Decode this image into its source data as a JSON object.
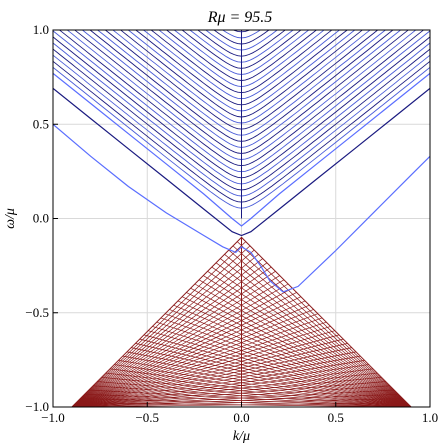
{
  "chart_data": {
    "type": "line",
    "title": "Rμ = 95.5",
    "xlabel": "k/μ",
    "ylabel": "ω/μ",
    "xlim": [
      -1.0,
      1.0
    ],
    "ylim": [
      -1.0,
      1.0
    ],
    "xticks": [
      -1.0,
      -0.5,
      0.0,
      0.5,
      1.0
    ],
    "xtick_labels": [
      "−1.0",
      "−0.5",
      "0.0",
      "0.5",
      "1.0"
    ],
    "yticks": [
      -1.0,
      -0.5,
      0.0,
      0.5,
      1.0
    ],
    "yticks_labels": [
      "−1.0",
      "−0.5",
      "0.0",
      "0.5",
      "1.0"
    ],
    "grid": true,
    "colors": {
      "dark_blue": "#1a1a80",
      "light_blue": "#5a6eff",
      "red": "#8b1a1a",
      "grid": "#d9d9d9"
    },
    "series": [
      {
        "color": "light_blue",
        "points": [
          [
            -1.0,
            0.5
          ],
          [
            -0.8,
            0.33
          ],
          [
            -0.6,
            0.17
          ],
          [
            -0.4,
            0.03
          ],
          [
            -0.2,
            -0.09
          ],
          [
            -0.1,
            -0.15
          ],
          [
            -0.03,
            -0.18
          ],
          [
            0.0,
            -0.15
          ],
          [
            0.05,
            -0.18
          ],
          [
            0.1,
            -0.25
          ],
          [
            0.15,
            -0.33
          ],
          [
            0.22,
            -0.39
          ],
          [
            0.3,
            -0.36
          ],
          [
            0.5,
            -0.17
          ],
          [
            0.7,
            0.03
          ],
          [
            0.9,
            0.23
          ],
          [
            1.0,
            0.33
          ]
        ]
      },
      {
        "color": "dark_blue",
        "points": [
          [
            -1.0,
            0.69
          ],
          [
            -0.8,
            0.53
          ],
          [
            -0.6,
            0.37
          ],
          [
            -0.4,
            0.21
          ],
          [
            -0.2,
            0.05
          ],
          [
            -0.05,
            -0.07
          ],
          [
            0.0,
            -0.09
          ],
          [
            0.05,
            -0.07
          ],
          [
            0.2,
            0.05
          ],
          [
            0.4,
            0.21
          ],
          [
            0.6,
            0.37
          ],
          [
            0.8,
            0.53
          ],
          [
            1.0,
            0.69
          ]
        ]
      },
      {
        "color": "light_blue",
        "points": [
          [
            -1.0,
            0.77
          ],
          [
            -0.8,
            0.61
          ],
          [
            -0.6,
            0.45
          ],
          [
            -0.4,
            0.29
          ],
          [
            -0.2,
            0.13
          ],
          [
            -0.05,
            0.0
          ],
          [
            0.0,
            -0.04
          ],
          [
            0.05,
            0.0
          ],
          [
            0.2,
            0.13
          ],
          [
            0.4,
            0.29
          ],
          [
            0.6,
            0.45
          ],
          [
            0.8,
            0.61
          ],
          [
            1.0,
            0.77
          ]
        ]
      }
    ],
    "regions": [
      {
        "name": "upper-continuum",
        "color": "blue",
        "description_of_shape": "hyperbolic bands above the branches",
        "band_count": 32,
        "apex_first": 0.0,
        "apex_last": 1.0
      },
      {
        "name": "lower-triangle",
        "color": "red",
        "apex": [
          0.0,
          -0.1
        ],
        "base_left": [
          -0.9,
          -1.0
        ],
        "base_right": [
          0.9,
          -1.0
        ]
      }
    ]
  }
}
